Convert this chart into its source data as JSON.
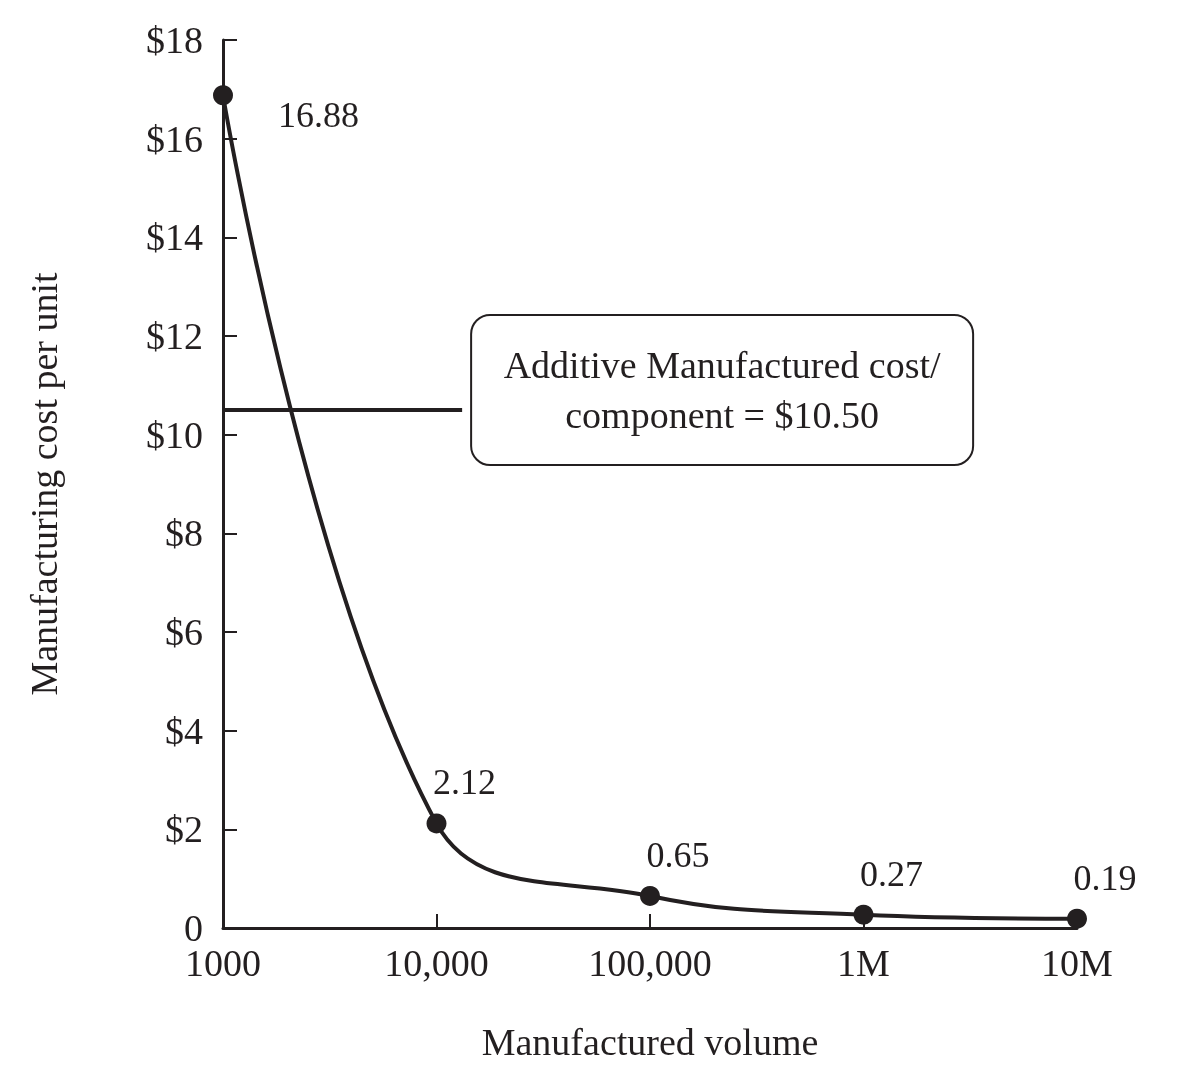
{
  "chart_data": {
    "type": "line",
    "xlabel": "Manufactured volume",
    "ylabel": "Manufacturing cost per unit",
    "x": [
      1000,
      10000,
      100000,
      1000000,
      10000000
    ],
    "series": [
      {
        "color": "#231f20",
        "values": [
          16.88,
          2.12,
          0.65,
          0.27,
          0.19
        ]
      }
    ],
    "data_labels": true,
    "marker": "circle",
    "line_style": "solid",
    "log": "x",
    "grid": false,
    "xlim": [
      1000,
      10000000
    ],
    "xticks": [
      1000,
      {
        "value": 10000,
        "label": "10,000"
      },
      {
        "value": 100000,
        "label": "100,000"
      },
      {
        "value": 1000000,
        "label": "1M"
      },
      {
        "value": 10000000,
        "label": "10M"
      }
    ],
    "ylim": [
      0,
      18
    ],
    "yticks": [
      0,
      {
        "value": 2,
        "label": "$2"
      },
      {
        "value": 4,
        "label": "$4"
      },
      {
        "value": 6,
        "label": "$6"
      },
      {
        "value": 8,
        "label": "$8"
      },
      {
        "value": 10,
        "label": "$10"
      },
      {
        "value": 12,
        "label": "$12"
      },
      {
        "value": 14,
        "label": "$14"
      },
      {
        "value": 16,
        "label": "$16"
      },
      {
        "value": 18,
        "label": "$18"
      }
    ],
    "ref_lines": [
      {
        "axis": "y",
        "value": 10.5,
        "label": "Additive Manufactured cost/component = $10.50",
        "color": "#231f20"
      }
    ]
  }
}
